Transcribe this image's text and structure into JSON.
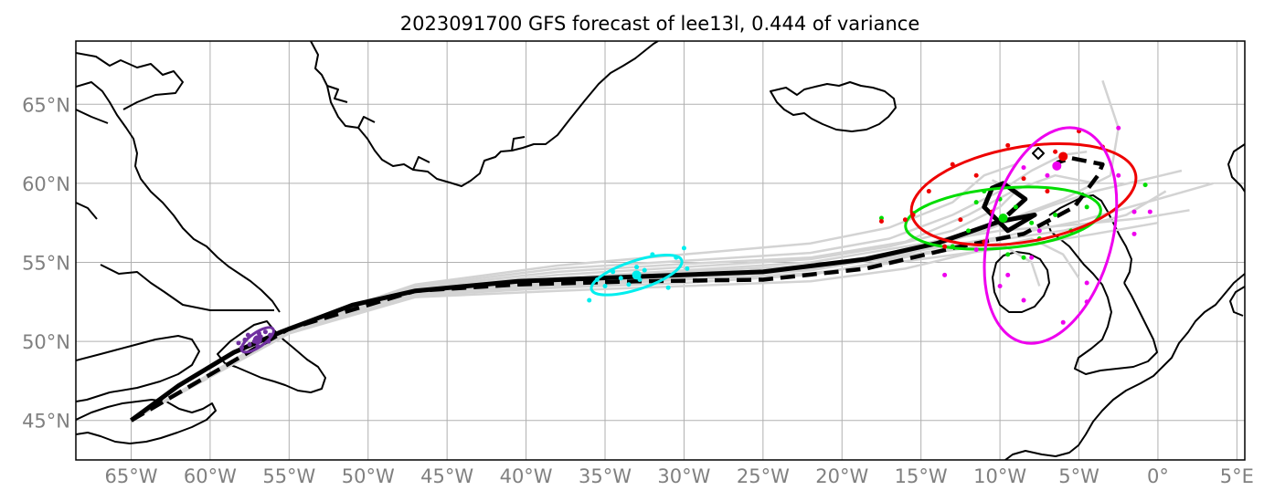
{
  "title": "2023091700 GFS forecast of lee13l, 0.444 of variance",
  "map": {
    "lon_range": [
      -68.5,
      5.5
    ],
    "lat_range": [
      42.5,
      69.0
    ],
    "grid": true,
    "lon_ticks": [
      -65,
      -60,
      -55,
      -50,
      -45,
      -40,
      -35,
      -30,
      -25,
      -20,
      -15,
      -10,
      -5,
      0,
      5
    ],
    "lon_labels": [
      "65°W",
      "60°W",
      "55°W",
      "50°W",
      "45°W",
      "40°W",
      "35°W",
      "30°W",
      "25°W",
      "20°W",
      "15°W",
      "10°W",
      "5°W",
      "0°",
      "5°E"
    ],
    "lat_ticks": [
      45,
      50,
      55,
      60,
      65
    ],
    "lat_labels": [
      "45°N",
      "50°N",
      "55°N",
      "60°N",
      "65°N"
    ]
  },
  "colors": {
    "coast": "#000000",
    "grid": "#b0b0b0",
    "ensemble": "#d3d3d3",
    "mean_track": "#000000",
    "cluster_purple": "#7030a0",
    "cluster_cyan": "#00eeee",
    "cluster_green": "#00dd00",
    "cluster_red": "#ee0000",
    "cluster_magenta": "#ee00ee"
  },
  "chart_data": {
    "type": "scatter",
    "mean_track_solid": [
      [
        -65.0,
        45.0
      ],
      [
        -62.0,
        47.2
      ],
      [
        -58.5,
        49.3
      ],
      [
        -55.5,
        50.6
      ],
      [
        -51.0,
        52.3
      ],
      [
        -47.0,
        53.2
      ],
      [
        -40.5,
        53.8
      ],
      [
        -33.0,
        54.1
      ],
      [
        -25.0,
        54.4
      ],
      [
        -18.5,
        55.2
      ],
      [
        -14.0,
        56.2
      ],
      [
        -10.0,
        57.6
      ],
      [
        -7.8,
        58.0
      ],
      [
        -9.5,
        57.0
      ],
      [
        -11.0,
        58.5
      ],
      [
        -10.5,
        59.7
      ],
      [
        -9.8,
        60.0
      ],
      [
        -8.4,
        59.0
      ],
      [
        -9.5,
        58.0
      ]
    ],
    "mean_track_dashed": [
      [
        -65.0,
        45.0
      ],
      [
        -55.0,
        50.8
      ],
      [
        -47.0,
        53.2
      ],
      [
        -40.5,
        53.6
      ],
      [
        -33.0,
        53.8
      ],
      [
        -25.0,
        53.9
      ],
      [
        -18.5,
        54.6
      ],
      [
        -13.0,
        55.9
      ],
      [
        -8.5,
        56.8
      ],
      [
        -5.3,
        58.5
      ],
      [
        -3.8,
        60.5
      ],
      [
        -3.5,
        61.2
      ],
      [
        -5.5,
        61.6
      ],
      [
        -6.4,
        61.3
      ]
    ],
    "ensemble_tracks": [
      [
        [
          -65,
          45
        ],
        [
          -55,
          50.8
        ],
        [
          -47,
          53.5
        ],
        [
          -38,
          54.6
        ],
        [
          -30,
          55.1
        ],
        [
          -22,
          55.6
        ],
        [
          -17,
          56.5
        ],
        [
          -13,
          58.0
        ],
        [
          -10,
          59.5
        ],
        [
          -8,
          60.8
        ],
        [
          -6,
          61.8
        ],
        [
          -4.5,
          62.0
        ]
      ],
      [
        [
          -65,
          45
        ],
        [
          -55,
          50.6
        ],
        [
          -47,
          53.0
        ],
        [
          -38,
          53.6
        ],
        [
          -30,
          54.0
        ],
        [
          -22,
          54.5
        ],
        [
          -16,
          55.5
        ],
        [
          -11,
          57.0
        ],
        [
          -7,
          58.5
        ],
        [
          -4,
          59.5
        ],
        [
          -1,
          60.2
        ],
        [
          1.5,
          60.8
        ]
      ],
      [
        [
          -65,
          45
        ],
        [
          -55,
          50.7
        ],
        [
          -47,
          53.3
        ],
        [
          -38,
          54.0
        ],
        [
          -30,
          54.5
        ],
        [
          -22,
          55.0
        ],
        [
          -16,
          56.0
        ],
        [
          -10,
          57.0
        ],
        [
          -5,
          57.4
        ],
        [
          -1,
          57.8
        ],
        [
          2,
          58.3
        ]
      ],
      [
        [
          -65,
          45
        ],
        [
          -55,
          50.5
        ],
        [
          -47,
          52.8
        ],
        [
          -38,
          53.2
        ],
        [
          -30,
          53.5
        ],
        [
          -22,
          53.8
        ],
        [
          -16,
          54.6
        ],
        [
          -11,
          55.8
        ],
        [
          -8,
          56.5
        ],
        [
          -6,
          55.5
        ],
        [
          -5,
          54.0
        ]
      ],
      [
        [
          -65,
          45
        ],
        [
          -55,
          50.9
        ],
        [
          -47,
          53.6
        ],
        [
          -38,
          54.8
        ],
        [
          -30,
          55.5
        ],
        [
          -22,
          56.2
        ],
        [
          -17,
          57.2
        ],
        [
          -13,
          58.8
        ],
        [
          -11,
          60.5
        ],
        [
          -9,
          61.2
        ]
      ],
      [
        [
          -65,
          45
        ],
        [
          -55,
          50.6
        ],
        [
          -47,
          53.1
        ],
        [
          -38,
          53.8
        ],
        [
          -30,
          54.2
        ],
        [
          -22,
          54.7
        ],
        [
          -16,
          55.8
        ],
        [
          -10,
          57.5
        ],
        [
          -6,
          59.0
        ],
        [
          -3,
          60.5
        ],
        [
          -2.5,
          63.5
        ],
        [
          -3.5,
          66.5
        ]
      ],
      [
        [
          -65,
          45
        ],
        [
          -55,
          50.7
        ],
        [
          -47,
          53.2
        ],
        [
          -38,
          54.0
        ],
        [
          -30,
          54.4
        ],
        [
          -22,
          54.8
        ],
        [
          -16,
          55.6
        ],
        [
          -10,
          56.6
        ],
        [
          -5,
          57.6
        ],
        [
          0,
          59.0
        ],
        [
          3.5,
          60.0
        ]
      ],
      [
        [
          -65,
          45
        ],
        [
          -55,
          50.5
        ],
        [
          -47,
          52.9
        ],
        [
          -38,
          53.4
        ],
        [
          -30,
          53.7
        ],
        [
          -22,
          54.2
        ],
        [
          -15,
          55.5
        ],
        [
          -10,
          56.2
        ],
        [
          -8,
          55.0
        ],
        [
          -7.5,
          53.5
        ]
      ],
      [
        [
          -65,
          45
        ],
        [
          -55,
          50.8
        ],
        [
          -47,
          53.4
        ],
        [
          -38,
          54.4
        ],
        [
          -30,
          54.9
        ],
        [
          -22,
          55.3
        ],
        [
          -16,
          56.3
        ],
        [
          -12,
          58.0
        ],
        [
          -9,
          59.6
        ],
        [
          -6.5,
          60.5
        ],
        [
          -4,
          60.0
        ]
      ],
      [
        [
          -65,
          45
        ],
        [
          -55,
          50.6
        ],
        [
          -47,
          53.0
        ],
        [
          -38,
          53.5
        ],
        [
          -30,
          53.9
        ],
        [
          -22,
          54.3
        ],
        [
          -15,
          55.2
        ],
        [
          -9,
          56.0
        ],
        [
          -4,
          56.8
        ],
        [
          0,
          57.5
        ]
      ],
      [
        [
          -65,
          45
        ],
        [
          -55,
          50.7
        ],
        [
          -47,
          53.3
        ],
        [
          -38,
          54.2
        ],
        [
          -30,
          54.7
        ],
        [
          -22,
          55.2
        ],
        [
          -17,
          56.0
        ],
        [
          -13,
          57.0
        ],
        [
          -10,
          58.5
        ],
        [
          -9,
          59.5
        ],
        [
          -10.5,
          60.2
        ]
      ],
      [
        [
          -65,
          45
        ],
        [
          -55,
          50.6
        ],
        [
          -47,
          53.1
        ],
        [
          -38,
          53.7
        ],
        [
          -30,
          54.1
        ],
        [
          -22,
          54.6
        ],
        [
          -16,
          55.4
        ],
        [
          -11,
          56.3
        ],
        [
          -6,
          57.0
        ],
        [
          -2,
          58.0
        ],
        [
          0.5,
          59.5
        ]
      ]
    ],
    "clusters": [
      {
        "color": "purple",
        "centroid": [
          -57.0,
          50.1
        ],
        "ellipse": {
          "center": [
            -57.0,
            50.1
          ],
          "a_deg": 1.2,
          "b_deg": 0.45,
          "angle_deg": 35
        },
        "points": [
          [
            -57.5,
            49.8
          ],
          [
            -56.8,
            50.3
          ],
          [
            -57.2,
            50.0
          ],
          [
            -56.5,
            50.6
          ],
          [
            -58.0,
            49.6
          ],
          [
            -57.8,
            50.1
          ],
          [
            -56.2,
            50.4
          ],
          [
            -57.0,
            49.7
          ],
          [
            -56.9,
            50.5
          ],
          [
            -57.6,
            50.4
          ],
          [
            -56.3,
            50.0
          ],
          [
            -58.2,
            49.9
          ]
        ]
      },
      {
        "color": "cyan",
        "centroid": [
          -33.0,
          54.2
        ],
        "ellipse": {
          "center": [
            -33.0,
            54.2
          ],
          "a_deg": 3.0,
          "b_deg": 0.9,
          "angle_deg": 18
        },
        "points": [
          [
            -36.0,
            52.6
          ],
          [
            -35.0,
            53.5
          ],
          [
            -34.0,
            54.0
          ],
          [
            -33.5,
            53.6
          ],
          [
            -32.5,
            54.5
          ],
          [
            -32.0,
            55.5
          ],
          [
            -30.5,
            55.3
          ],
          [
            -30.0,
            55.9
          ],
          [
            -31.0,
            53.4
          ],
          [
            -34.5,
            54.4
          ],
          [
            -33.0,
            54.7
          ],
          [
            -29.8,
            54.6
          ],
          [
            -32.8,
            53.9
          ],
          [
            -35.5,
            53.9
          ]
        ]
      },
      {
        "color": "green",
        "centroid": [
          -9.8,
          57.8
        ],
        "ellipse": {
          "center": [
            -9.8,
            57.8
          ],
          "a_deg": 6.2,
          "b_deg": 1.9,
          "angle_deg": 5
        },
        "points": [
          [
            -17.5,
            57.8
          ],
          [
            -15.5,
            58.1
          ],
          [
            -13.0,
            56.0
          ],
          [
            -12.0,
            57.0
          ],
          [
            -11.5,
            58.8
          ],
          [
            -10.0,
            59.0
          ],
          [
            -9.0,
            58.5
          ],
          [
            -8.0,
            57.5
          ],
          [
            -7.5,
            56.5
          ],
          [
            -6.5,
            58.0
          ],
          [
            -5.5,
            57.0
          ],
          [
            -4.5,
            58.5
          ],
          [
            -0.8,
            59.9
          ],
          [
            -11.0,
            59.5
          ],
          [
            -9.5,
            55.5
          ],
          [
            -8.5,
            55.3
          ]
        ]
      },
      {
        "color": "red",
        "centroid": [
          -6.0,
          61.7
        ],
        "ellipse": {
          "center": [
            -8.5,
            59.3
          ],
          "a_deg": 7.2,
          "b_deg": 3.0,
          "angle_deg": 10
        },
        "points": [
          [
            -15.5,
            58.0
          ],
          [
            -14.5,
            59.5
          ],
          [
            -13.0,
            61.2
          ],
          [
            -11.5,
            60.5
          ],
          [
            -9.5,
            62.4
          ],
          [
            -8.5,
            60.3
          ],
          [
            -7.0,
            59.5
          ],
          [
            -6.5,
            62.0
          ],
          [
            -5.0,
            63.3
          ],
          [
            -3.5,
            62.3
          ],
          [
            -12.5,
            57.7
          ],
          [
            -10.5,
            58.2
          ],
          [
            -13.5,
            56.0
          ],
          [
            -16.0,
            57.7
          ],
          [
            -17.5,
            57.6
          ],
          [
            -11.0,
            56.3
          ]
        ]
      },
      {
        "color": "magenta",
        "centroid": [
          -6.4,
          61.1
        ],
        "ellipse": {
          "center": [
            -6.8,
            56.7
          ],
          "a_deg": 7.0,
          "b_deg": 3.9,
          "angle_deg": 75
        },
        "points": [
          [
            -7.5,
            57.0
          ],
          [
            -9.5,
            54.2
          ],
          [
            -8.0,
            55.3
          ],
          [
            -11.5,
            55.8
          ],
          [
            -10.0,
            53.5
          ],
          [
            -13.5,
            54.2
          ],
          [
            -4.5,
            53.7
          ],
          [
            -4.5,
            52.5
          ],
          [
            -6.0,
            51.2
          ],
          [
            -8.5,
            52.6
          ],
          [
            -1.5,
            56.8
          ],
          [
            -1.5,
            58.2
          ],
          [
            -2.5,
            60.5
          ],
          [
            -8.5,
            61.0
          ],
          [
            -7.0,
            60.5
          ],
          [
            -0.5,
            58.2
          ],
          [
            -2.5,
            63.5
          ]
        ]
      }
    ]
  }
}
